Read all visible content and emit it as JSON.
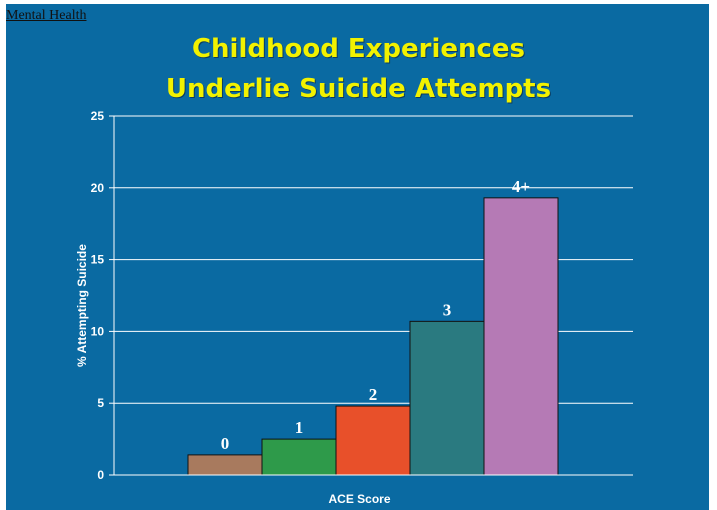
{
  "section_label": "Mental Health",
  "title_lines": [
    "Childhood Experiences",
    "Underlie Suicide Attempts"
  ],
  "colors": {
    "background": "#0a6aa2",
    "title": "#f2f200",
    "gridline": "#ffffff",
    "bars": [
      "#a87a5e",
      "#2e9a4a",
      "#e8502a",
      "#2a7a80",
      "#b57ab5"
    ]
  },
  "chart_data": {
    "type": "bar",
    "title": "Childhood Experiences Underlie Suicide Attempts",
    "xlabel": "ACE Score",
    "ylabel": "% Attempting Suicide",
    "categories": [
      "0",
      "1",
      "2",
      "3",
      "4+"
    ],
    "values": [
      1.4,
      2.5,
      4.8,
      10.7,
      19.3
    ],
    "ylim": [
      0,
      25
    ],
    "yticks": [
      0,
      5,
      10,
      15,
      20,
      25
    ],
    "grid": true,
    "data_labels": [
      "0",
      "1",
      "2",
      "3",
      "4+"
    ]
  }
}
